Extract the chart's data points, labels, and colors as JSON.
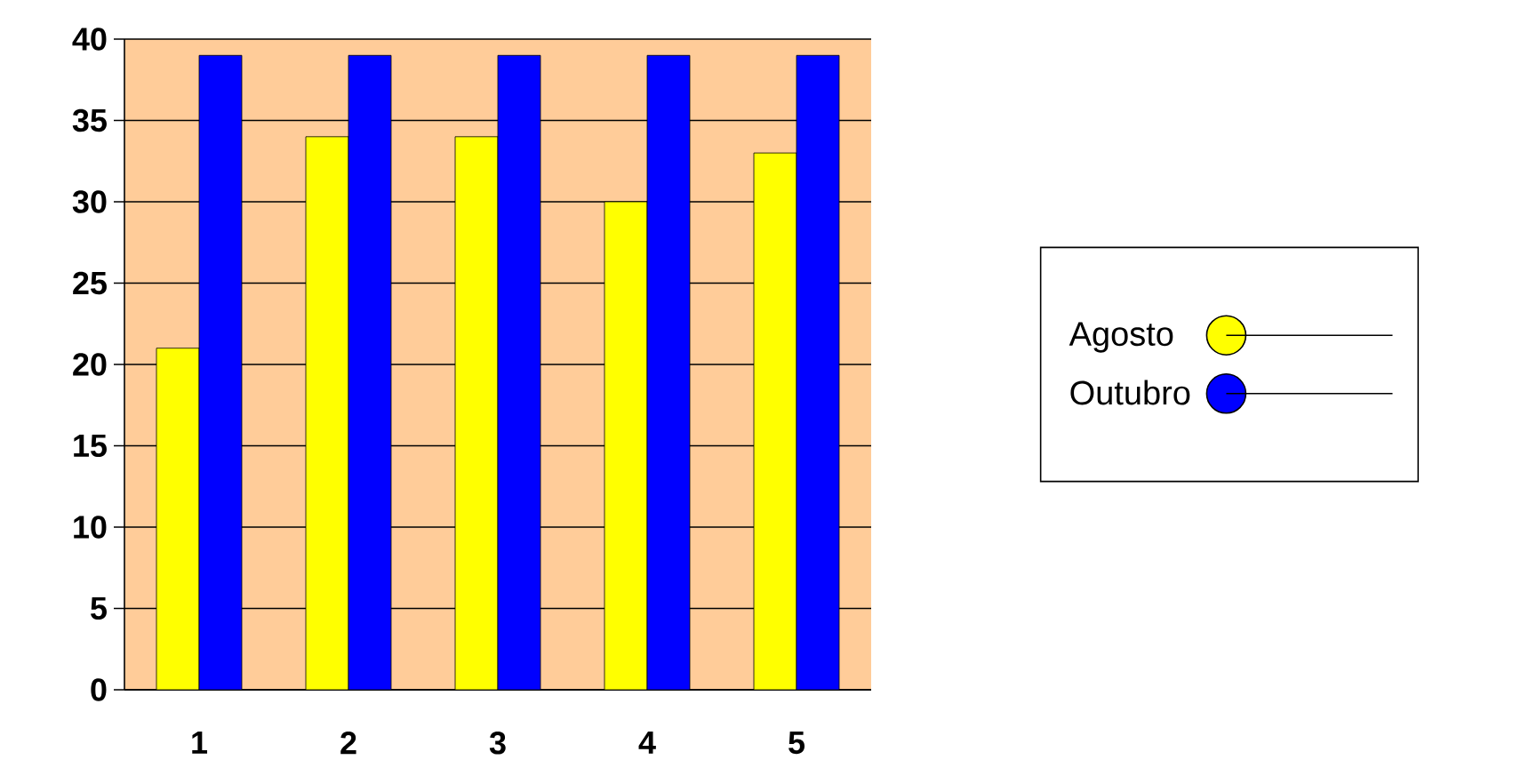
{
  "chart_data": {
    "type": "bar",
    "categories": [
      "1",
      "2",
      "3",
      "4",
      "5"
    ],
    "series": [
      {
        "name": "Agosto",
        "color": "#ffff00",
        "values": [
          21,
          34,
          34,
          30,
          33
        ]
      },
      {
        "name": "Outubro",
        "color": "#0000ff",
        "values": [
          39,
          39,
          39,
          39,
          39
        ]
      }
    ],
    "ylim": [
      0,
      40
    ],
    "yticks": [
      0,
      5,
      10,
      15,
      20,
      25,
      30,
      35,
      40
    ],
    "grid": "y",
    "legend": "right"
  }
}
